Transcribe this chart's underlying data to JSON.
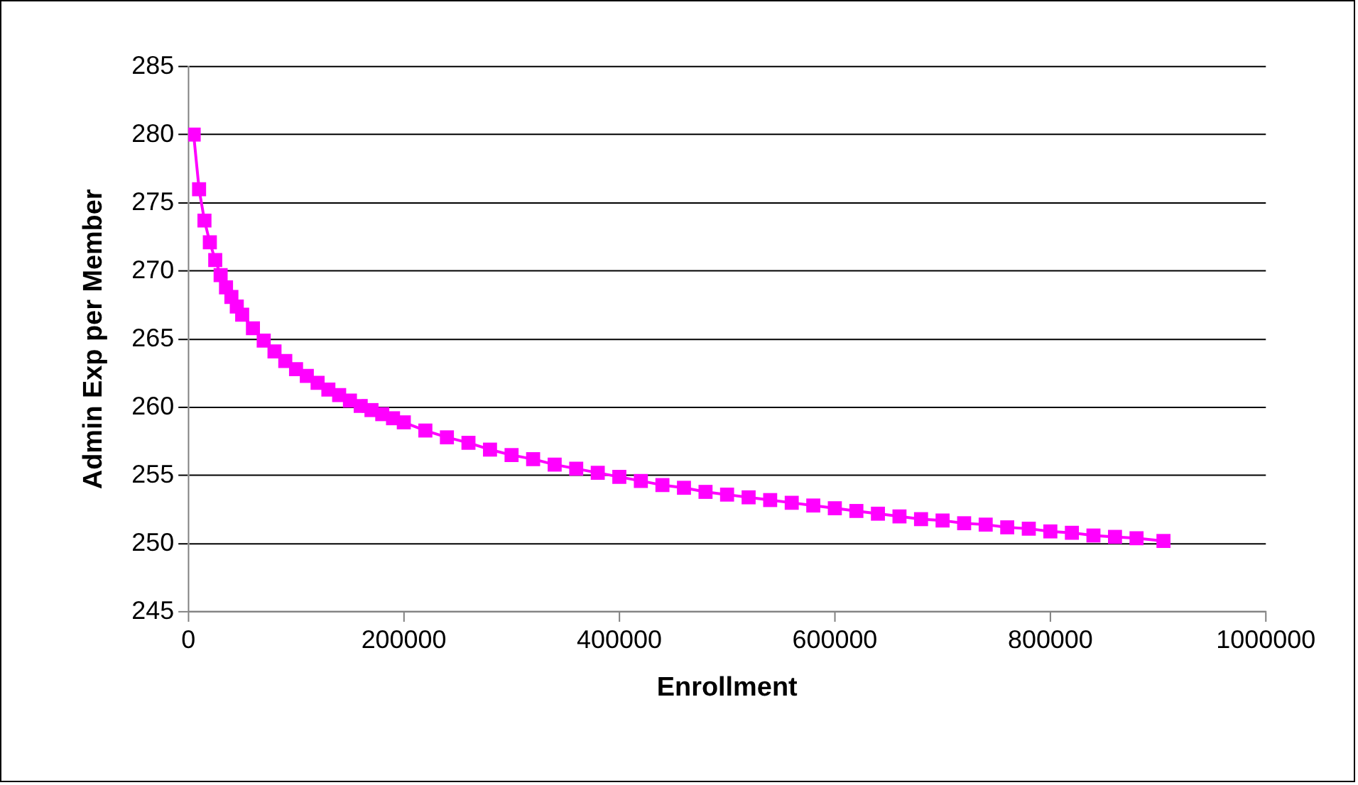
{
  "chart_data": {
    "type": "line",
    "xlabel": "Enrollment",
    "ylabel": "Admin Exp per Member",
    "x": [
      5000,
      10000,
      15000,
      20000,
      25000,
      30000,
      35000,
      40000,
      45000,
      50000,
      60000,
      70000,
      80000,
      90000,
      100000,
      110000,
      120000,
      130000,
      140000,
      150000,
      160000,
      170000,
      180000,
      190000,
      200000,
      220000,
      240000,
      260000,
      280000,
      300000,
      320000,
      340000,
      360000,
      380000,
      400000,
      420000,
      440000,
      460000,
      480000,
      500000,
      520000,
      540000,
      560000,
      580000,
      600000,
      620000,
      640000,
      660000,
      680000,
      700000,
      720000,
      740000,
      760000,
      780000,
      800000,
      820000,
      840000,
      860000,
      880000,
      905000
    ],
    "series": [
      {
        "color": "#ff00ff",
        "values": [
          280.0,
          276.0,
          273.7,
          272.1,
          270.8,
          269.7,
          268.8,
          268.1,
          267.4,
          266.8,
          265.8,
          264.9,
          264.1,
          263.4,
          262.8,
          262.3,
          261.8,
          261.3,
          260.9,
          260.5,
          260.1,
          259.8,
          259.5,
          259.2,
          258.9,
          258.3,
          257.8,
          257.4,
          256.9,
          256.5,
          256.2,
          255.8,
          255.5,
          255.2,
          254.9,
          254.6,
          254.3,
          254.1,
          253.8,
          253.6,
          253.4,
          253.2,
          253.0,
          252.8,
          252.6,
          252.4,
          252.2,
          252.0,
          251.8,
          251.7,
          251.5,
          251.4,
          251.2,
          251.1,
          250.9,
          250.8,
          250.6,
          250.5,
          250.4,
          250.2
        ]
      }
    ],
    "xlim": [
      0,
      1000000
    ],
    "xticks": [
      0,
      200000,
      400000,
      600000,
      800000,
      1000000
    ],
    "ylim": [
      245,
      285
    ],
    "yticks": [
      245,
      250,
      255,
      260,
      265,
      270,
      275,
      280,
      285
    ],
    "grid": "y",
    "legend": false,
    "marker": "square",
    "line_style": "solid"
  }
}
